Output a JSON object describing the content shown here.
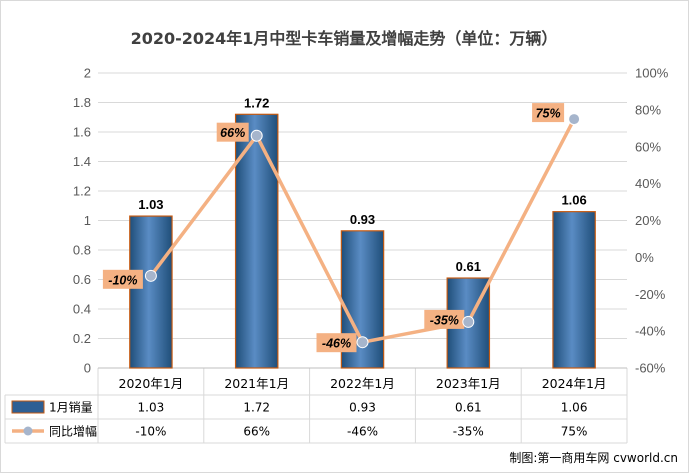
{
  "chart_data": {
    "type": "bar",
    "title": "2020-2024年1月中型卡车销量及增幅走势（单位：万辆）",
    "categories": [
      "2020年1月",
      "2021年1月",
      "2022年1月",
      "2023年1月",
      "2024年1月"
    ],
    "series": [
      {
        "name": "1月销量",
        "type": "bar",
        "axis": "left",
        "values": [
          1.03,
          1.72,
          0.93,
          0.61,
          1.06
        ],
        "labels": [
          "1.03",
          "1.72",
          "0.93",
          "0.61",
          "1.06"
        ],
        "color": "#2E5F94"
      },
      {
        "name": "同比增幅",
        "type": "line",
        "axis": "right",
        "values": [
          -10,
          66,
          -46,
          -35,
          75
        ],
        "labels": [
          "-10%",
          "66%",
          "-46%",
          "-35%",
          "75%"
        ],
        "color": "#F4B183"
      }
    ],
    "y_left": {
      "ylim": [
        0,
        2
      ],
      "ticks": [
        "0",
        "0.2",
        "0.4",
        "0.6",
        "0.8",
        "1",
        "1.2",
        "1.4",
        "1.6",
        "1.8",
        "2"
      ]
    },
    "y_right": {
      "ylim": [
        -60,
        100
      ],
      "ticks": [
        "-60%",
        "-40%",
        "-20%",
        "0%",
        "20%",
        "40%",
        "60%",
        "80%",
        "100%"
      ]
    },
    "grid": true,
    "data_table": true,
    "table_rows": [
      {
        "label": "1月销量",
        "values": [
          "1.03",
          "1.72",
          "0.93",
          "0.61",
          "1.06"
        ]
      },
      {
        "label": "同比增幅",
        "values": [
          "-10%",
          "66%",
          "-46%",
          "-35%",
          "75%"
        ]
      }
    ],
    "source": "制图:第一商用车网 cvworld.cn",
    "colors": {
      "bar_fill": "#2E5F94",
      "bar_edge": "#C55A11",
      "line": "#F4B183",
      "marker": "#A6B5CC",
      "label_box": "#F4B183"
    }
  }
}
